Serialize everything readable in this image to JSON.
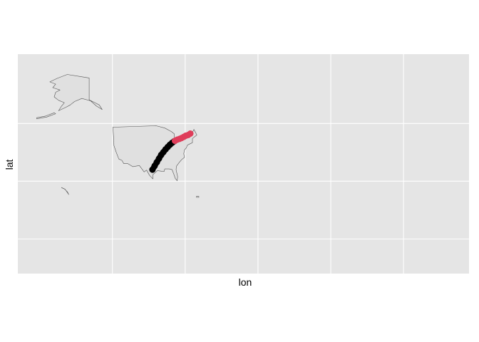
{
  "chart_data": {
    "type": "map",
    "title": "",
    "xlabel": "lon",
    "ylabel": "lat",
    "xlim": [
      -190,
      120
    ],
    "ylim": [
      -15,
      80
    ],
    "grid": true,
    "x_breaks": [
      -125,
      -75,
      -25,
      25,
      75
    ],
    "y_breaks": [
      0,
      25,
      50
    ],
    "tick_labels_shown": false,
    "legend": "none",
    "colors": {
      "panel_background": "#e5e5e5",
      "grid_line": "#ffffff",
      "land_fill": "#e0e0e0",
      "land_outline": "#555555",
      "series_a": "#000000",
      "series_b": "#df3d5a"
    },
    "regions": [
      {
        "name": "alaska",
        "polygon": [
          [
            -168,
            68
          ],
          [
            -163,
            69.5
          ],
          [
            -156,
            71.2
          ],
          [
            -147,
            70.3
          ],
          [
            -141,
            69.7
          ],
          [
            -141,
            60.2
          ],
          [
            -137,
            59
          ],
          [
            -134,
            58
          ],
          [
            -132,
            56
          ],
          [
            -136,
            57.5
          ],
          [
            -140,
            59.8
          ],
          [
            -146,
            60.8
          ],
          [
            -151,
            59.5
          ],
          [
            -154,
            58
          ],
          [
            -157,
            57
          ],
          [
            -162,
            55.5
          ],
          [
            -160,
            57.5
          ],
          [
            -158,
            59
          ],
          [
            -162,
            60
          ],
          [
            -165,
            61.5
          ],
          [
            -164,
            63.5
          ],
          [
            -161,
            64.5
          ],
          [
            -166,
            65.5
          ],
          [
            -164,
            67
          ]
        ]
      },
      {
        "name": "aleutian-islands",
        "polygon": [
          [
            -177,
            52
          ],
          [
            -170,
            52.8
          ],
          [
            -164,
            54.2
          ],
          [
            -165,
            54.6
          ],
          [
            -171,
            53.2
          ],
          [
            -177,
            52.5
          ]
        ]
      },
      {
        "name": "hawaii",
        "polygon": [
          [
            -160,
            22.2
          ],
          [
            -157.5,
            21.5
          ],
          [
            -155,
            19.2
          ],
          [
            -155.8,
            20.3
          ],
          [
            -158,
            21.7
          ],
          [
            -160,
            22.3
          ]
        ]
      },
      {
        "name": "contiguous-us",
        "polygon": [
          [
            -124.5,
            48.4
          ],
          [
            -95,
            49
          ],
          [
            -89,
            48
          ],
          [
            -84.5,
            46.5
          ],
          [
            -82.5,
            45.5
          ],
          [
            -82.5,
            42.5
          ],
          [
            -79,
            43.3
          ],
          [
            -76,
            44.5
          ],
          [
            -74,
            45
          ],
          [
            -71,
            45
          ],
          [
            -69,
            47.4
          ],
          [
            -67,
            45
          ],
          [
            -70,
            43.5
          ],
          [
            -70,
            41.7
          ],
          [
            -73.5,
            40.6
          ],
          [
            -74.2,
            39.5
          ],
          [
            -75.5,
            38.5
          ],
          [
            -76,
            36.9
          ],
          [
            -75.5,
            35.3
          ],
          [
            -77.5,
            34.3
          ],
          [
            -79,
            33.2
          ],
          [
            -81,
            31.5
          ],
          [
            -81.3,
            30
          ],
          [
            -80.2,
            27
          ],
          [
            -80.5,
            25.2
          ],
          [
            -81.8,
            26.2
          ],
          [
            -82.8,
            28
          ],
          [
            -84,
            30
          ],
          [
            -86,
            30.3
          ],
          [
            -89,
            30.3
          ],
          [
            -89.5,
            29.2
          ],
          [
            -91,
            29.3
          ],
          [
            -94,
            29.6
          ],
          [
            -97.2,
            27.8
          ],
          [
            -97.2,
            26
          ],
          [
            -99.5,
            27.5
          ],
          [
            -101.5,
            29.8
          ],
          [
            -103.2,
            29
          ],
          [
            -106.5,
            31.8
          ],
          [
            -111,
            31.3
          ],
          [
            -114.7,
            32.7
          ],
          [
            -117.2,
            32.6
          ],
          [
            -118.5,
            34
          ],
          [
            -120.6,
            34.6
          ],
          [
            -122.5,
            37.7
          ],
          [
            -124,
            40.5
          ],
          [
            -124.1,
            43
          ],
          [
            -124.7,
            48.4
          ]
        ]
      },
      {
        "name": "puerto-rico",
        "polygon": [
          [
            -67.2,
            18.5
          ],
          [
            -65.6,
            18.4
          ],
          [
            -65.6,
            18
          ],
          [
            -67.2,
            18
          ]
        ]
      }
    ],
    "series": [
      {
        "name": "",
        "color": "#000000",
        "type": "scatter",
        "x": [
          -97.5,
          -96,
          -94.5,
          -93,
          -91.5,
          -90,
          -88.5,
          -87,
          -85.5,
          -84,
          -82.5
        ],
        "y": [
          30,
          31.6,
          33.2,
          34.8,
          36.4,
          37.6,
          38.8,
          39.8,
          40.8,
          41.6,
          42.3
        ]
      },
      {
        "name": "",
        "color": "#df3d5a",
        "type": "scatter",
        "x": [
          -82,
          -80.5,
          -79,
          -77.5,
          -76,
          -74.5,
          -73,
          -71.5
        ],
        "y": [
          42.5,
          43,
          43.3,
          43.7,
          44.2,
          44.7,
          45,
          45.6
        ]
      }
    ]
  }
}
